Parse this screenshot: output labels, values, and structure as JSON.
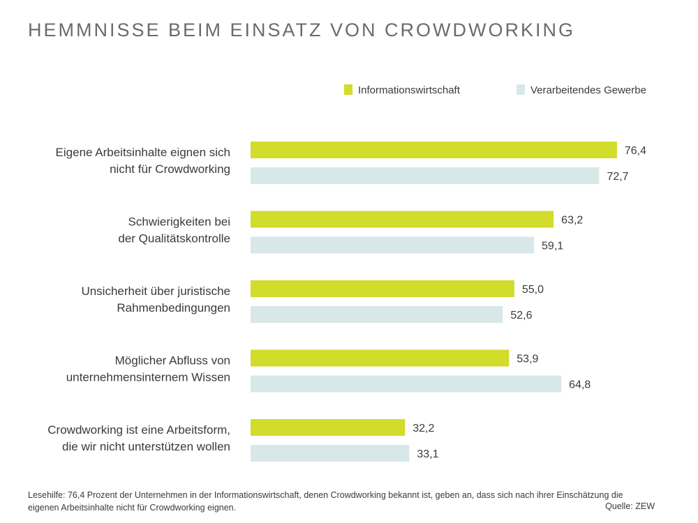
{
  "title": "HEMMNISSE BEIM EINSATZ VON CROWDWORKING",
  "colors": {
    "series1": "#d1dc2b",
    "series2": "#d8e8e8"
  },
  "chart_data": {
    "type": "bar",
    "orientation": "horizontal",
    "categories": [
      [
        "Eigene Arbeitsinhalte eignen sich",
        "nicht für Crowdworking"
      ],
      [
        "Schwierigkeiten bei",
        "der Qualitätskontrolle"
      ],
      [
        "Unsicherheit über juristische",
        "Rahmenbedingungen"
      ],
      [
        "Möglicher Abfluss von",
        "unternehmensinternem Wissen"
      ],
      [
        "Crowdworking ist eine Arbeitsform,",
        "die wir nicht unterstützen wollen"
      ]
    ],
    "series": [
      {
        "name": "Informationswirtschaft",
        "values": [
          76.4,
          63.2,
          55.0,
          53.9,
          32.2
        ],
        "labels": [
          "76,4",
          "63,2",
          "55,0",
          "53,9",
          "32,2"
        ]
      },
      {
        "name": "Verarbeitendes Gewerbe",
        "values": [
          72.7,
          59.1,
          52.6,
          64.8,
          33.1
        ],
        "labels": [
          "72,7",
          "59,1",
          "52,6",
          "64,8",
          "33,1"
        ]
      }
    ],
    "xlim": [
      0,
      100
    ],
    "grid": false,
    "legend": "top-right"
  },
  "footnote": "Lesehilfe: 76,4 Prozent der Unternehmen in der Informationswirtschaft, denen Crowdworking bekannt ist, geben an, dass sich nach ihrer Einschätzung die eigenen Arbeitsinhalte nicht für Crowdworking eignen.",
  "source": "Quelle: ZEW"
}
